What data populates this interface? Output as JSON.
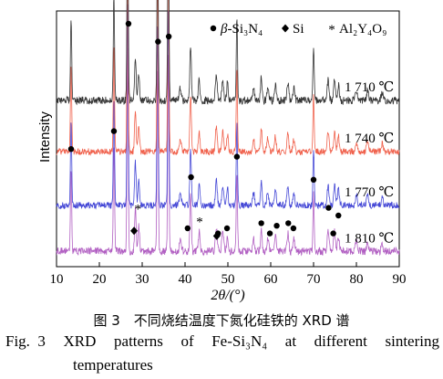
{
  "chart_data": {
    "type": "line",
    "xlabel": "2θ/(°)",
    "ylabel": "Intensity",
    "xlim": [
      10,
      90
    ],
    "xticks": [
      10,
      20,
      30,
      40,
      50,
      60,
      70,
      80,
      90
    ],
    "y_tick_labels": false,
    "legend": {
      "placement": "top-right",
      "entries": [
        {
          "marker": "circle",
          "label": "β-Si₃N₄"
        },
        {
          "marker": "diamond",
          "label": "Si"
        },
        {
          "marker": "asterisk",
          "label": "Al₂Y₄O₉"
        }
      ]
    },
    "series": [
      {
        "name": "1 810 ℃",
        "color": "#b15fc2",
        "baseline": 0.06,
        "noise_level": 0.015,
        "seed": 4
      },
      {
        "name": "1 770 ℃",
        "color": "#4447d6",
        "baseline": 0.24,
        "noise_level": 0.013,
        "seed": 3
      },
      {
        "name": "1 740 ℃",
        "color": "#f0614c",
        "baseline": 0.45,
        "noise_level": 0.013,
        "seed": 2
      },
      {
        "name": "1 710 ℃",
        "color": "#333333",
        "baseline": 0.65,
        "noise_level": 0.015,
        "seed": 1
      }
    ],
    "peaks": [
      {
        "x": 13.4,
        "height": 0.33,
        "width": 0.2
      },
      {
        "x": 23.4,
        "height": 0.42,
        "width": 0.2
      },
      {
        "x": 26.6,
        "height": 0.8,
        "width": 0.2
      },
      {
        "x": 28.4,
        "height": 0.17,
        "width": 0.25
      },
      {
        "x": 29.2,
        "height": 0.1,
        "width": 0.25
      },
      {
        "x": 33.6,
        "height": 0.73,
        "width": 0.2
      },
      {
        "x": 36.1,
        "height": 0.79,
        "width": 0.2
      },
      {
        "x": 38.9,
        "height": 0.05,
        "width": 0.3
      },
      {
        "x": 41.3,
        "height": 0.22,
        "width": 0.25
      },
      {
        "x": 43.3,
        "height": 0.08,
        "width": 0.25
      },
      {
        "x": 47.3,
        "height": 0.1,
        "width": 0.3
      },
      {
        "x": 48.8,
        "height": 0.08,
        "width": 0.3
      },
      {
        "x": 49.9,
        "height": 0.07,
        "width": 0.25
      },
      {
        "x": 52.1,
        "height": 0.32,
        "width": 0.2
      },
      {
        "x": 56.0,
        "height": 0.05,
        "width": 0.3
      },
      {
        "x": 57.8,
        "height": 0.09,
        "width": 0.25
      },
      {
        "x": 59.3,
        "height": 0.05,
        "width": 0.3
      },
      {
        "x": 61.1,
        "height": 0.06,
        "width": 0.3
      },
      {
        "x": 64.0,
        "height": 0.07,
        "width": 0.3
      },
      {
        "x": 65.4,
        "height": 0.05,
        "width": 0.3
      },
      {
        "x": 70.0,
        "height": 0.22,
        "width": 0.2
      },
      {
        "x": 73.4,
        "height": 0.08,
        "width": 0.3
      },
      {
        "x": 74.9,
        "height": 0.08,
        "width": 0.3
      },
      {
        "x": 75.8,
        "height": 0.06,
        "width": 0.3
      },
      {
        "x": 80.0,
        "height": 0.04,
        "width": 0.3
      },
      {
        "x": 82.6,
        "height": 0.04,
        "width": 0.3
      },
      {
        "x": 86.0,
        "height": 0.03,
        "width": 0.3
      }
    ],
    "markers": [
      {
        "x": 13.4,
        "type": "circle"
      },
      {
        "x": 23.4,
        "type": "circle"
      },
      {
        "x": 26.8,
        "type": "circle"
      },
      {
        "x": 33.7,
        "type": "circle"
      },
      {
        "x": 36.2,
        "type": "circle"
      },
      {
        "x": 41.4,
        "type": "circle"
      },
      {
        "x": 52.1,
        "type": "circle"
      },
      {
        "x": 70.0,
        "type": "circle"
      },
      {
        "x": 29.0,
        "type": "asterisk"
      },
      {
        "x": 43.4,
        "type": "asterisk"
      },
      {
        "x": 40.6,
        "type": "circle"
      },
      {
        "x": 47.7,
        "type": "circle"
      },
      {
        "x": 49.8,
        "type": "circle"
      },
      {
        "x": 57.8,
        "type": "circle"
      },
      {
        "x": 59.8,
        "type": "circle"
      },
      {
        "x": 61.4,
        "type": "circle"
      },
      {
        "x": 64.1,
        "type": "circle"
      },
      {
        "x": 65.3,
        "type": "circle"
      },
      {
        "x": 73.5,
        "type": "circle"
      },
      {
        "x": 74.6,
        "type": "circle"
      },
      {
        "x": 75.8,
        "type": "circle"
      },
      {
        "x": 28.1,
        "type": "diamond"
      },
      {
        "x": 47.4,
        "type": "diamond"
      }
    ],
    "marker_heights": [
      0.36,
      0.43,
      0.85,
      0.78,
      0.8,
      0.25,
      0.33,
      0.24,
      0.13,
      0.08,
      0.05,
      0.03,
      0.05,
      0.07,
      0.03,
      0.06,
      0.07,
      0.05,
      0.13,
      0.03,
      0.1,
      0.04,
      0.02
    ]
  },
  "caption": {
    "cn": "图 3　不同烧结温度下氮化硅铁的 XRD 谱",
    "en_words": [
      "Fig.  3",
      "XRD",
      "patterns",
      "of",
      "Fe-Si₃N₄",
      "at",
      "different",
      "sintering"
    ],
    "en_line2": "temperatures"
  }
}
